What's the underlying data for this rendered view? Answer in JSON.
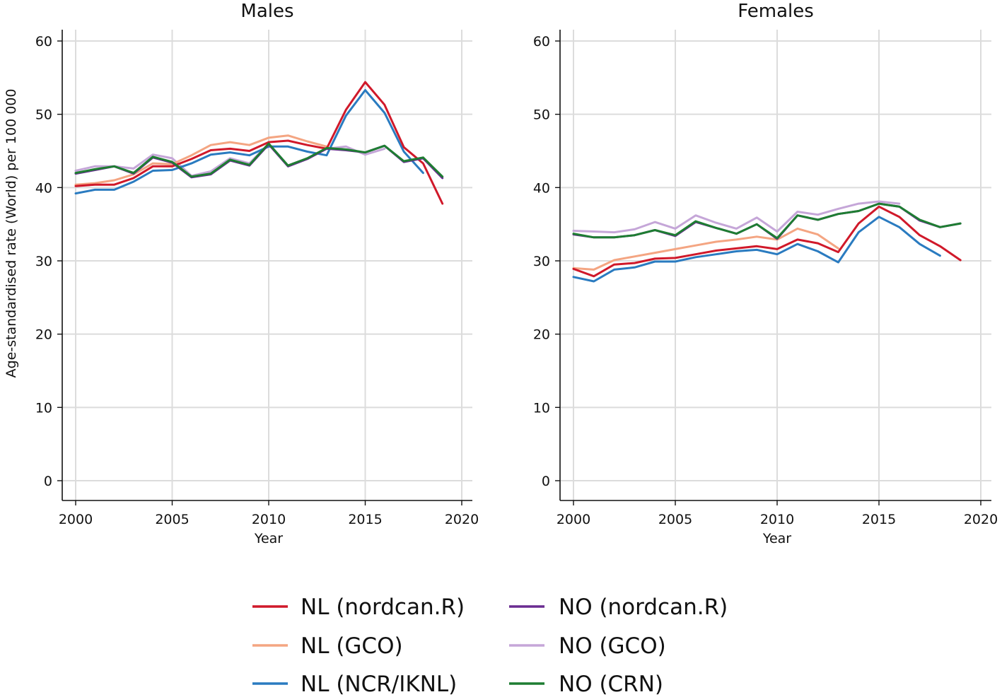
{
  "figure": {
    "ylabel": "Age-standardised rate (World) per 100 000",
    "xlabel": "Year"
  },
  "series_styles": [
    {
      "key": "nl_nordcan",
      "label": "NL (nordcan.R)",
      "color": "#d0192a"
    },
    {
      "key": "nl_gco",
      "label": "NL (GCO)",
      "color": "#f4a582"
    },
    {
      "key": "nl_ncr",
      "label": "NL (NCR/IKNL)",
      "color": "#2a7bc0"
    },
    {
      "key": "no_nordcan",
      "label": "NO (nordcan.R)",
      "color": "#6a2c91"
    },
    {
      "key": "no_gco",
      "label": "NO (GCO)",
      "color": "#c5a6d8"
    },
    {
      "key": "no_crn",
      "label": "NO (CRN)",
      "color": "#1e7d32"
    }
  ],
  "chart_data": [
    {
      "type": "line",
      "title": "Males",
      "xlabel": "Year",
      "ylabel": "Age-standardised rate (World) per 100 000",
      "xlim": [
        2000,
        2020
      ],
      "ylim": [
        0,
        60
      ],
      "xticks": [
        2000,
        2005,
        2010,
        2015,
        2020
      ],
      "yticks": [
        0,
        10,
        20,
        30,
        40,
        50,
        60
      ],
      "grid": true,
      "series": [
        {
          "key": "no_gco",
          "name": "NO (GCO)",
          "x": [
            2000,
            2001,
            2002,
            2003,
            2004,
            2005,
            2006,
            2007,
            2008,
            2009,
            2010,
            2011,
            2012,
            2013,
            2014,
            2015,
            2016
          ],
          "values": [
            42.3,
            42.9,
            42.9,
            42.6,
            44.5,
            44.0,
            41.6,
            42.2,
            44.0,
            43.3,
            46.0,
            43.0,
            44.0,
            45.3,
            45.6,
            44.5,
            45.3
          ]
        },
        {
          "key": "nl_gco",
          "name": "NL (GCO)",
          "x": [
            2000,
            2001,
            2002,
            2003,
            2004,
            2005,
            2006,
            2007,
            2008,
            2009,
            2010,
            2011,
            2012,
            2013
          ],
          "values": [
            40.4,
            40.6,
            41.0,
            41.8,
            43.3,
            43.2,
            44.4,
            45.8,
            46.2,
            45.8,
            46.8,
            47.1,
            46.3,
            45.6
          ]
        },
        {
          "key": "nl_ncr",
          "name": "NL (NCR/IKNL)",
          "x": [
            2000,
            2001,
            2002,
            2003,
            2004,
            2005,
            2006,
            2007,
            2008,
            2009,
            2010,
            2011,
            2012,
            2013,
            2014,
            2015,
            2016,
            2017,
            2018
          ],
          "values": [
            39.2,
            39.7,
            39.7,
            40.8,
            42.3,
            42.4,
            43.3,
            44.5,
            44.8,
            44.4,
            45.6,
            45.6,
            44.9,
            44.4,
            49.8,
            53.3,
            50.2,
            44.9,
            42.0
          ]
        },
        {
          "key": "nl_nordcan",
          "name": "NL (nordcan.R)",
          "x": [
            2000,
            2001,
            2002,
            2003,
            2004,
            2005,
            2006,
            2007,
            2008,
            2009,
            2010,
            2011,
            2012,
            2013,
            2014,
            2015,
            2016,
            2017,
            2018,
            2019
          ],
          "values": [
            40.2,
            40.4,
            40.4,
            41.3,
            42.9,
            42.9,
            43.9,
            45.1,
            45.3,
            45.0,
            46.2,
            46.4,
            45.8,
            45.3,
            50.6,
            54.4,
            51.3,
            45.5,
            43.3,
            37.8
          ]
        },
        {
          "key": "no_nordcan",
          "name": "NO (nordcan.R)",
          "x": [
            2000,
            2001,
            2002,
            2003,
            2004,
            2005,
            2006,
            2007,
            2008,
            2009,
            2010,
            2011,
            2012,
            2013,
            2014,
            2015,
            2016,
            2017,
            2018,
            2019
          ],
          "values": [
            41.9,
            42.4,
            42.9,
            41.9,
            44.1,
            43.4,
            41.4,
            41.8,
            43.7,
            43.0,
            45.9,
            42.9,
            43.9,
            45.3,
            45.1,
            44.8,
            45.7,
            43.5,
            44.0,
            41.3
          ]
        },
        {
          "key": "no_crn",
          "name": "NO (CRN)",
          "x": [
            2000,
            2001,
            2002,
            2003,
            2004,
            2005,
            2006,
            2007,
            2008,
            2009,
            2010,
            2011,
            2012,
            2013,
            2014,
            2015,
            2016,
            2017,
            2018,
            2019
          ],
          "values": [
            42.0,
            42.5,
            42.9,
            42.0,
            44.2,
            43.5,
            41.5,
            41.9,
            43.8,
            43.1,
            46.0,
            43.0,
            44.0,
            45.4,
            45.2,
            44.8,
            45.7,
            43.6,
            44.1,
            41.5
          ]
        }
      ]
    },
    {
      "type": "line",
      "title": "Females",
      "xlabel": "Year",
      "ylabel": "",
      "xlim": [
        2000,
        2020
      ],
      "ylim": [
        0,
        60
      ],
      "xticks": [
        2000,
        2005,
        2010,
        2015,
        2020
      ],
      "yticks": [
        0,
        10,
        20,
        30,
        40,
        50,
        60
      ],
      "grid": true,
      "series": [
        {
          "key": "no_gco",
          "name": "NO (GCO)",
          "x": [
            2000,
            2001,
            2002,
            2003,
            2004,
            2005,
            2006,
            2007,
            2008,
            2009,
            2010,
            2011,
            2012,
            2013,
            2014,
            2015,
            2016
          ],
          "values": [
            34.1,
            34.0,
            33.9,
            34.3,
            35.3,
            34.4,
            36.2,
            35.2,
            34.4,
            35.9,
            34.0,
            36.7,
            36.3,
            37.1,
            37.8,
            38.1,
            37.8
          ]
        },
        {
          "key": "nl_gco",
          "name": "NL (GCO)",
          "x": [
            2000,
            2001,
            2002,
            2003,
            2004,
            2005,
            2006,
            2007,
            2008,
            2009,
            2010,
            2011,
            2012,
            2013
          ],
          "values": [
            29.0,
            28.8,
            30.1,
            30.6,
            31.1,
            31.6,
            32.1,
            32.6,
            32.9,
            33.3,
            32.9,
            34.4,
            33.6,
            31.7
          ]
        },
        {
          "key": "nl_ncr",
          "name": "NL (NCR/IKNL)",
          "x": [
            2000,
            2001,
            2002,
            2003,
            2004,
            2005,
            2006,
            2007,
            2008,
            2009,
            2010,
            2011,
            2012,
            2013,
            2014,
            2015,
            2016,
            2017,
            2018
          ],
          "values": [
            27.8,
            27.2,
            28.8,
            29.1,
            29.9,
            29.9,
            30.5,
            30.9,
            31.3,
            31.5,
            30.9,
            32.3,
            31.3,
            29.8,
            33.9,
            36.0,
            34.6,
            32.3,
            30.7
          ]
        },
        {
          "key": "nl_nordcan",
          "name": "NL (nordcan.R)",
          "x": [
            2000,
            2001,
            2002,
            2003,
            2004,
            2005,
            2006,
            2007,
            2008,
            2009,
            2010,
            2011,
            2012,
            2013,
            2014,
            2015,
            2016,
            2017,
            2018,
            2019
          ],
          "values": [
            28.9,
            27.9,
            29.5,
            29.7,
            30.3,
            30.4,
            30.9,
            31.4,
            31.7,
            32.0,
            31.6,
            32.9,
            32.4,
            31.2,
            35.1,
            37.4,
            36.0,
            33.5,
            32.0,
            30.1
          ]
        },
        {
          "key": "no_nordcan",
          "name": "NO (nordcan.R)",
          "x": [
            2000,
            2001,
            2002,
            2003,
            2004,
            2005,
            2006,
            2007,
            2008,
            2009,
            2010,
            2011,
            2012,
            2013,
            2014,
            2015,
            2016,
            2017,
            2018,
            2019
          ],
          "values": [
            33.6,
            33.2,
            33.2,
            33.5,
            34.2,
            33.4,
            35.3,
            34.5,
            33.7,
            35.0,
            33.0,
            36.2,
            35.6,
            36.4,
            36.8,
            37.8,
            37.4,
            35.5,
            34.6,
            35.1
          ]
        },
        {
          "key": "no_crn",
          "name": "NO (CRN)",
          "x": [
            2000,
            2001,
            2002,
            2003,
            2004,
            2005,
            2006,
            2007,
            2008,
            2009,
            2010,
            2011,
            2012,
            2013,
            2014,
            2015,
            2016,
            2017,
            2018,
            2019
          ],
          "values": [
            33.7,
            33.2,
            33.2,
            33.5,
            34.2,
            33.5,
            35.4,
            34.5,
            33.7,
            35.0,
            33.1,
            36.2,
            35.6,
            36.4,
            36.8,
            37.8,
            37.4,
            35.6,
            34.6,
            35.1
          ]
        }
      ]
    }
  ],
  "legend": {
    "position": "bottom",
    "items": [
      {
        "label": "NL (nordcan.R)",
        "color": "#d0192a"
      },
      {
        "label": "NL (GCO)",
        "color": "#f4a582"
      },
      {
        "label": "NL (NCR/IKNL)",
        "color": "#2a7bc0"
      },
      {
        "label": "NO (nordcan.R)",
        "color": "#6a2c91"
      },
      {
        "label": "NO (GCO)",
        "color": "#c5a6d8"
      },
      {
        "label": "NO (CRN)",
        "color": "#1e7d32"
      }
    ]
  }
}
